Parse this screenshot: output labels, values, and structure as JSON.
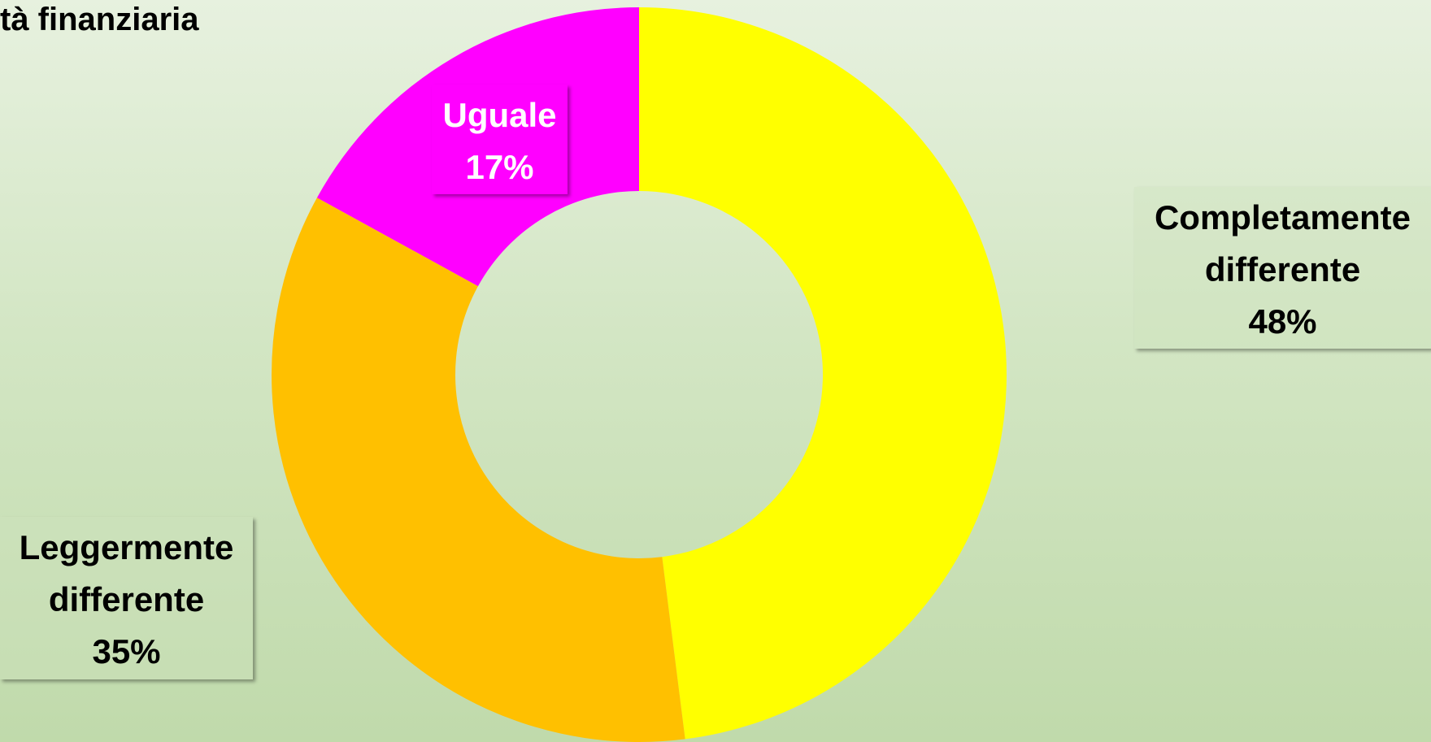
{
  "chart_data": {
    "type": "donut",
    "title": "tà finanziaria",
    "categories": [
      "Completamente differente",
      "Leggermente differente",
      "Uguale"
    ],
    "values": [
      48,
      35,
      17
    ],
    "value_labels": [
      "48%",
      "35%",
      "17%"
    ],
    "colors": [
      "#ffff00",
      "#ffc000",
      "#ff00ff"
    ]
  }
}
